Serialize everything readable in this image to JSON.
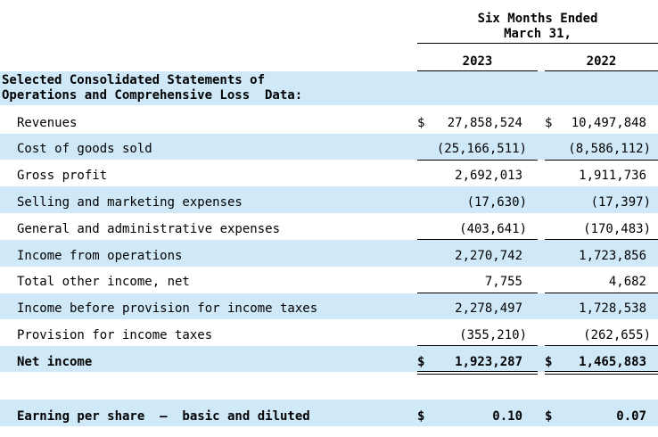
{
  "header": {
    "period_line1": "Six Months Ended",
    "period_line2": "March 31,",
    "col1": "2023",
    "col2": "2022"
  },
  "section": {
    "title_line1": "Selected Consolidated Statements of",
    "title_line2": "Operations and Comprehensive Loss  Data:"
  },
  "currency": "$",
  "rows": [
    {
      "label": "Revenues",
      "v2023": "27,858,524",
      "v2022": "10,497,848"
    },
    {
      "label": "Cost of goods sold",
      "v2023": "(25,166,511)",
      "v2022": "(8,586,112)"
    },
    {
      "label": "Gross profit",
      "v2023": "2,692,013",
      "v2022": "1,911,736"
    },
    {
      "label": "Selling and marketing expenses",
      "v2023": "(17,630)",
      "v2022": "(17,397)"
    },
    {
      "label": "General and administrative expenses",
      "v2023": "(403,641)",
      "v2022": "(170,483)"
    },
    {
      "label": "Income from operations",
      "v2023": "2,270,742",
      "v2022": "1,723,856"
    },
    {
      "label": "Total other income, net",
      "v2023": "7,755",
      "v2022": "4,682"
    },
    {
      "label": "Income before provision for income taxes",
      "v2023": "2,278,497",
      "v2022": "1,728,538"
    },
    {
      "label": "Provision for income taxes",
      "v2023": "(355,210)",
      "v2022": "(262,655)"
    },
    {
      "label": "Net income",
      "v2023": "1,923,287",
      "v2022": "1,465,883"
    },
    {
      "label": "Earning per share  –  basic and diluted",
      "v2023": "0.10",
      "v2022": "0.07"
    }
  ]
}
